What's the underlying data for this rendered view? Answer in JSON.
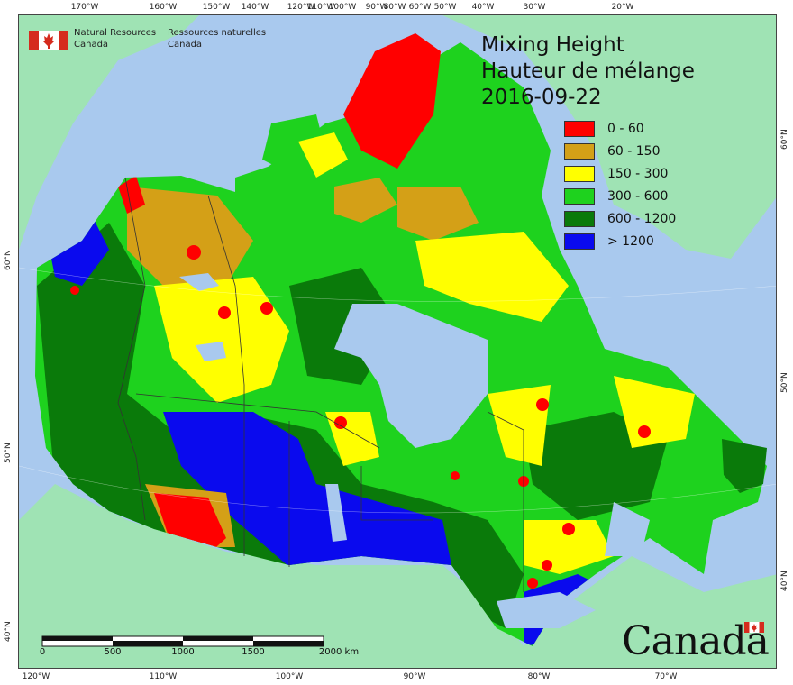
{
  "map": {
    "title_lines": [
      "Mixing Height",
      "Hauteur de mélange",
      "2016-09-22"
    ],
    "legend": [
      {
        "label": "0 - 60",
        "color": "#ff0000"
      },
      {
        "label": "60 - 150",
        "color": "#d4a017"
      },
      {
        "label": "150 - 300",
        "color": "#ffff00"
      },
      {
        "label": "300 - 600",
        "color": "#1ed21e"
      },
      {
        "label": "600 - 1200",
        "color": "#0a7a0a"
      },
      {
        "label": "> 1200",
        "color": "#0a0aee"
      }
    ],
    "colors": {
      "ocean": "#a9c9ee",
      "foreign_land": "#9fe3b4",
      "lakes": "#a9c9ee"
    },
    "agency": {
      "en_line1": "Natural Resources",
      "en_line2": "Canada",
      "fr_line1": "Ressources naturelles",
      "fr_line2": "Canada"
    },
    "wordmark": "Canada",
    "scale": {
      "labels": [
        "0",
        "500",
        "1000",
        "1500",
        "2000 km"
      ]
    },
    "top_ticks": [
      "170°W",
      "160°W",
      "150°W",
      "140°W",
      "120°W",
      "110°W",
      "100°W",
      "90°W",
      "80°W",
      "60°W",
      "50°W",
      "40°W",
      "30°W",
      "20°W"
    ],
    "bottom_ticks": [
      "120°W",
      "110°W",
      "100°W",
      "90°W",
      "80°W",
      "70°W"
    ],
    "left_ticks": [
      "60°N",
      "50°N",
      "40°N"
    ],
    "right_ticks": [
      "60°N",
      "50°N",
      "40°N"
    ]
  }
}
